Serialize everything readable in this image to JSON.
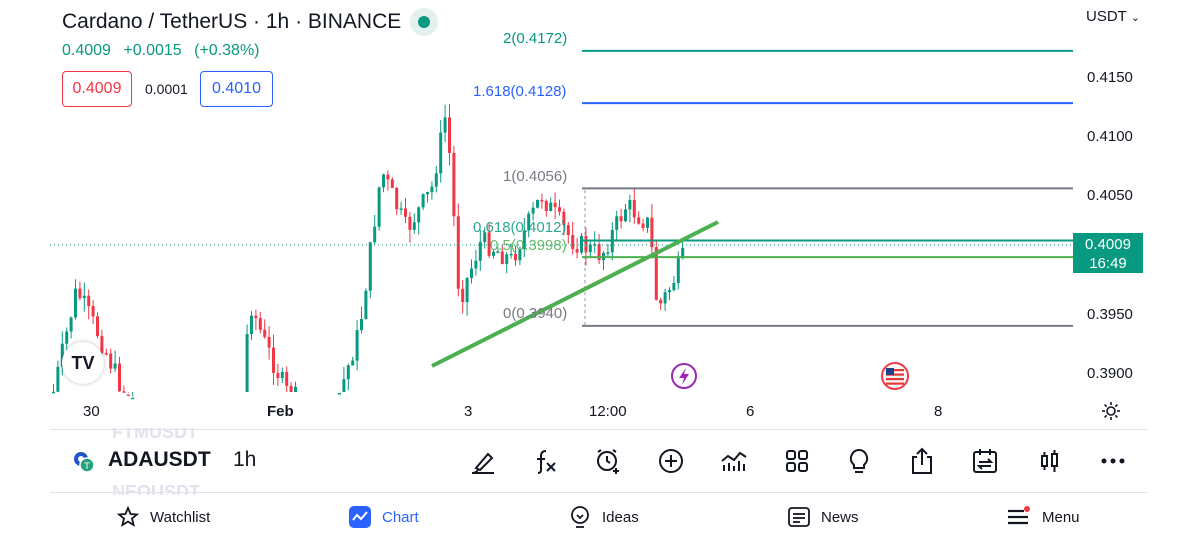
{
  "header": {
    "title": "Cardano / TetherUS · 1h · BINANCE",
    "last_price": "0.4009",
    "change": "+0.0015",
    "change_pct": "(+0.38%)",
    "sell_price": "0.4009",
    "spread": "0.0001",
    "buy_price": "0.4010",
    "currency": "USDT"
  },
  "price_axis": {
    "labels": [
      "0.4150",
      "0.4100",
      "0.4050",
      "0.3950",
      "0.3900"
    ],
    "current_price": "0.4009",
    "countdown": "16:49"
  },
  "time_axis": {
    "labels": [
      "30",
      "Feb",
      "3",
      "12:00",
      "6",
      "8"
    ]
  },
  "fib": {
    "levels": [
      {
        "label": "2(0.4172)",
        "value": 0.4172,
        "color": "#089981"
      },
      {
        "label": "1.618(0.4128)",
        "value": 0.4128,
        "color": "#2962ff"
      },
      {
        "label": "1(0.4056)",
        "value": 0.4056,
        "color": "#787b86"
      },
      {
        "label": "0.618(0.4012)",
        "value": 0.4012,
        "color": "#089981"
      },
      {
        "label": "0.5(0.3998)",
        "value": 0.3998,
        "color": "#4caf50"
      },
      {
        "label": "0(0.3940)",
        "value": 0.394,
        "color": "#787b86"
      }
    ]
  },
  "colors": {
    "up": "#089981",
    "down": "#f23645",
    "trendline": "#4caf50",
    "accent": "#2962ff"
  },
  "toolbar": {
    "symbol": "ADAUSDT",
    "interval": "1h",
    "ghost_above": "FTMUSDT",
    "ghost_below": "NEOUSDT",
    "icons": [
      "brush-icon",
      "indicators-fx-icon",
      "alert-clock-icon",
      "add-plus-icon",
      "compare-bars-icon",
      "layout-grid-icon",
      "idea-bulb-icon",
      "share-icon",
      "replay-calendar-icon",
      "candle-style-icon",
      "more-dots-icon"
    ]
  },
  "bottom_nav": [
    {
      "label": "Watchlist",
      "icon": "star-icon"
    },
    {
      "label": "Chart",
      "icon": "chart-icon",
      "active": true
    },
    {
      "label": "Ideas",
      "icon": "bulb-icon"
    },
    {
      "label": "News",
      "icon": "news-icon"
    },
    {
      "label": "Menu",
      "icon": "menu-icon"
    }
  ]
}
